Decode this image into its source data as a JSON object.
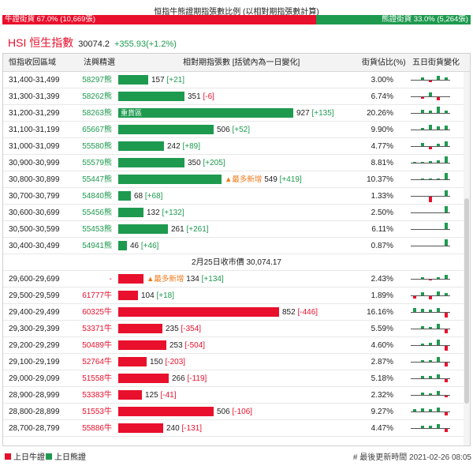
{
  "header": {
    "title": "恒指牛熊證期指張數比例 (以相對期指張數計算)",
    "bull_ratio_label": "牛證街貨 67.0% (10,669張)",
    "bear_ratio_label": "熊證街貨 33.0% (5,264張)",
    "bull_ratio": 0.67,
    "bear_ratio": 0.33
  },
  "index": {
    "name": "HSI 恒生指數",
    "price": "30074.2",
    "change": "+355.93(+1.2%)"
  },
  "table": {
    "columns": [
      "恒指收回區域",
      "法興精選",
      "相對期指張數 [括號內為一日變化]",
      "街貨佔比(%)",
      "五日街貨變化"
    ],
    "max_contracts": 927,
    "rows": [
      {
        "range": "31,400-31,499",
        "code": "58297熊",
        "type": "bear",
        "contracts": 157,
        "change": "[+21]",
        "pct": "3.00%",
        "five_day": [
          0,
          0.3,
          -0.2,
          0.6,
          0.3
        ]
      },
      {
        "range": "31,300-31,399",
        "code": "58262熊",
        "type": "bear",
        "contracts": 351,
        "change": "[-6]",
        "pct": "6.74%",
        "five_day": [
          0,
          -0.2,
          0.6,
          -0.4,
          0
        ]
      },
      {
        "range": "31,200-31,299",
        "code": "58263熊",
        "type": "bear",
        "contracts": 927,
        "change": "[+135]",
        "pct": "20.26%",
        "five_day": [
          0,
          0.4,
          0.3,
          0.9,
          0.3
        ],
        "inside_label": "重貨區"
      },
      {
        "range": "31,100-31,199",
        "code": "65667熊",
        "type": "bear",
        "contracts": 506,
        "change": "[+52]",
        "pct": "9.90%",
        "five_day": [
          0,
          0.2,
          0.7,
          0.4,
          0.6
        ]
      },
      {
        "range": "31,000-31,099",
        "code": "55580熊",
        "type": "bear",
        "contracts": 242,
        "change": "[+89]",
        "pct": "4.77%",
        "five_day": [
          0,
          0.4,
          -0.3,
          0.3,
          0.7
        ]
      },
      {
        "range": "30,900-30,999",
        "code": "55579熊",
        "type": "bear",
        "contracts": 350,
        "change": "[+205]",
        "pct": "8.81%",
        "five_day": [
          0.1,
          0.1,
          0.2,
          0.3,
          0.9
        ]
      },
      {
        "range": "30,800-30,899",
        "code": "55447熊",
        "type": "bear",
        "contracts": 549,
        "change": "[+419]",
        "pct": "10.37%",
        "five_day": [
          0,
          0.1,
          0.1,
          0.1,
          0.9
        ],
        "annotation": "▲最多新增"
      },
      {
        "range": "30,700-30,799",
        "code": "54840熊",
        "type": "bear",
        "contracts": 68,
        "change": "[+68]",
        "pct": "1.33%",
        "five_day": [
          0,
          0,
          -0.8,
          0,
          0.8
        ]
      },
      {
        "range": "30,600-30,699",
        "code": "55456熊",
        "type": "bear",
        "contracts": 132,
        "change": "[+132]",
        "pct": "2.50%",
        "five_day": [
          0,
          0,
          0,
          0,
          0.9
        ]
      },
      {
        "range": "30,500-30,599",
        "code": "55453熊",
        "type": "bear",
        "contracts": 261,
        "change": "[+261]",
        "pct": "6.11%",
        "five_day": [
          0,
          0,
          0,
          0,
          0.9
        ]
      },
      {
        "range": "30,400-30,499",
        "code": "54941熊",
        "type": "bear",
        "contracts": 46,
        "change": "[+46]",
        "pct": "0.87%",
        "five_day": [
          0,
          0,
          0,
          0,
          0.9
        ]
      },
      {
        "divider": true,
        "text": "2月25日收市價 30,074.17"
      },
      {
        "range": "29,600-29,699",
        "code": "-",
        "type": "bull",
        "contracts": 134,
        "change": "[+134]",
        "pct": "2.43%",
        "five_day": [
          0,
          0.2,
          -0.1,
          0.2,
          0.6
        ],
        "annotation": "▲最多新增",
        "ann_first": true
      },
      {
        "range": "29,500-29,599",
        "code": "61777牛",
        "type": "bull",
        "contracts": 104,
        "change": "[+18]",
        "pct": "1.89%",
        "five_day": [
          -0.3,
          0.4,
          -0.4,
          0.5,
          0.3
        ]
      },
      {
        "range": "29,400-29,499",
        "code": "60325牛",
        "type": "bull",
        "contracts": 852,
        "change": "[-446]",
        "pct": "16.16%",
        "five_day": [
          0.5,
          0.4,
          0.3,
          0.6,
          -0.7
        ]
      },
      {
        "range": "29,300-29,399",
        "code": "53371牛",
        "type": "bull",
        "contracts": 235,
        "change": "[-354]",
        "pct": "5.59%",
        "five_day": [
          0,
          0.3,
          0.2,
          0.7,
          -0.6
        ]
      },
      {
        "range": "29,200-29,299",
        "code": "50489牛",
        "type": "bull",
        "contracts": 253,
        "change": "[-504]",
        "pct": "4.60%",
        "five_day": [
          0,
          0.2,
          0.3,
          0.8,
          -0.7
        ]
      },
      {
        "range": "29,100-29,199",
        "code": "52764牛",
        "type": "bull",
        "contracts": 150,
        "change": "[-203]",
        "pct": "2.87%",
        "five_day": [
          0,
          0.2,
          0.2,
          0.7,
          -0.5
        ]
      },
      {
        "range": "29,000-29,099",
        "code": "51558牛",
        "type": "bull",
        "contracts": 266,
        "change": "[-119]",
        "pct": "5.18%",
        "five_day": [
          0,
          0.3,
          0.3,
          0.6,
          -0.4
        ]
      },
      {
        "range": "28,900-28,999",
        "code": "53383牛",
        "type": "bull",
        "contracts": 125,
        "change": "[-41]",
        "pct": "2.32%",
        "five_day": [
          0,
          0.3,
          0.2,
          0.5,
          -0.2
        ]
      },
      {
        "range": "28,800-28,899",
        "code": "51553牛",
        "type": "bull",
        "contracts": 506,
        "change": "[-106]",
        "pct": "9.27%",
        "five_day": [
          0.3,
          0.4,
          0.3,
          0.6,
          -0.4
        ]
      },
      {
        "range": "28,700-28,799",
        "code": "55886牛",
        "type": "bull",
        "contracts": 240,
        "change": "[-131]",
        "pct": "4.47%",
        "five_day": [
          0,
          0.3,
          0.3,
          0.5,
          -0.4
        ]
      }
    ]
  },
  "footer": {
    "legend_bull": "上日牛證",
    "legend_bear": "上日熊證",
    "update_label": "# 最後更新時間  2021-02-26 08:05"
  },
  "colors": {
    "bull": "#e8102c",
    "bear": "#1e9a4f",
    "annotation": "#f07a1a"
  }
}
